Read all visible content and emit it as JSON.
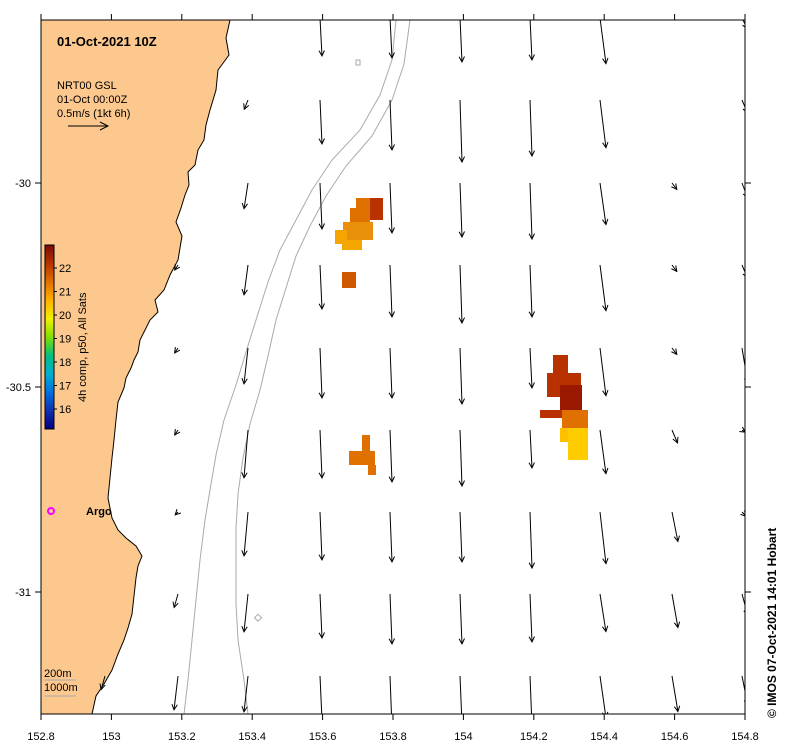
{
  "title": "01-Oct-2021 10Z",
  "legend": {
    "product": "NRT00 GSL",
    "time": "01-Oct 00:00Z",
    "scale": "0.5m/s (1kt 6h)"
  },
  "colorbar": {
    "label": "4h comp, p50, All Sats",
    "ticks": [
      "22",
      "21",
      "20",
      "19",
      "18",
      "17",
      "16"
    ],
    "colors": [
      "#7a0a0a",
      "#b83200",
      "#e07000",
      "#ffb000",
      "#f0f000",
      "#80e000",
      "#00c080",
      "#00b0d0",
      "#0070e0",
      "#1030b0",
      "#000080"
    ]
  },
  "x_axis": {
    "ticks": [
      "152.8",
      "153",
      "153.2",
      "153.4",
      "153.6",
      "153.8",
      "154",
      "154.2",
      "154.4",
      "154.6",
      "154.8"
    ]
  },
  "y_axis": {
    "ticks": [
      "-30",
      "-30.5",
      "-31"
    ]
  },
  "argo": {
    "label": "Argo"
  },
  "contours": {
    "c200": "200m",
    "c1000": "1000m"
  },
  "credit": "© IMOS 07-Oct-2021 14:01 Hobart",
  "colors": {
    "land": "#fcc88e",
    "argo": "#ff00ff",
    "contour": "#aaaaaa"
  }
}
